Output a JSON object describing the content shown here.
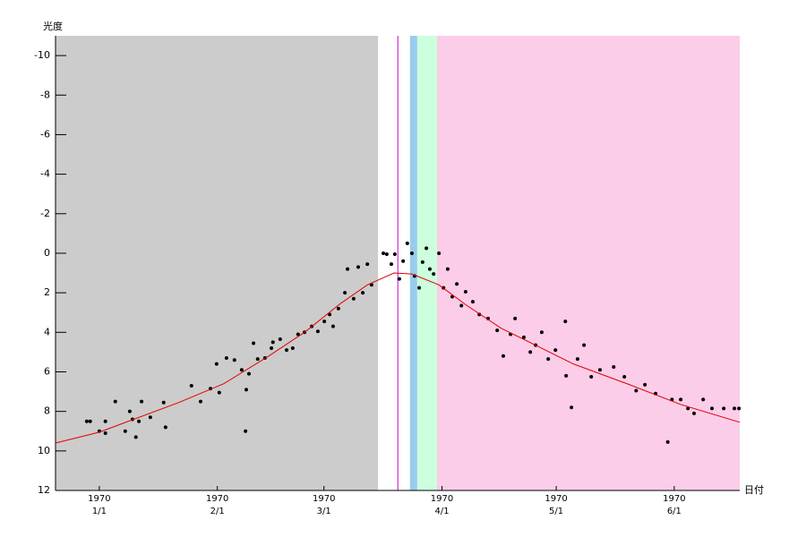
{
  "chart_data": {
    "type": "scatter",
    "y_label": "光度",
    "x_label": "日付",
    "xlim": [
      -11.5,
      168.2
    ],
    "ylim": [
      12,
      -11
    ],
    "yticks": [
      -10,
      -8,
      -6,
      -4,
      -2,
      0,
      2,
      4,
      6,
      8,
      10,
      12
    ],
    "xticks": [
      {
        "value": 0,
        "label": "1970\n1/1"
      },
      {
        "value": 31,
        "label": "1970\n2/1"
      },
      {
        "value": 59,
        "label": "1970\n3/1"
      },
      {
        "value": 90,
        "label": "1970\n4/1"
      },
      {
        "value": 120,
        "label": "1970\n5/1"
      },
      {
        "value": 151,
        "label": "1970\n6/1"
      }
    ],
    "bands": [
      {
        "from": -11.5,
        "to": 73.2,
        "color": "#cccccc"
      },
      {
        "from": 81.6,
        "to": 83.5,
        "color": "#99ccee"
      },
      {
        "from": 83.5,
        "to": 88.7,
        "color": "#ccffdd"
      },
      {
        "from": 88.7,
        "to": 168.2,
        "color": "#fbcde8"
      }
    ],
    "vline": {
      "x": 78.4,
      "color": "#cc00cc"
    },
    "series": [
      {
        "type": "scatter",
        "color": "#000000",
        "x": [
          -3.3,
          -2.4,
          0,
          1.6,
          1.6,
          4.2,
          6.8,
          8,
          8.7,
          9.6,
          10.4,
          11.1,
          13.4,
          16.9,
          17.4,
          24.2,
          26.6,
          29.2,
          30.8,
          31.5,
          33.4,
          35.5,
          37.4,
          38.4,
          38.6,
          39.3,
          40.5,
          41.6,
          43.5,
          45.2,
          45.6,
          47.5,
          49.2,
          50.8,
          52.2,
          53.9,
          55.8,
          57.4,
          59.1,
          60.5,
          61.4,
          62.8,
          64.5,
          65.2,
          66.8,
          68,
          69.2,
          70.4,
          71.5,
          74.6,
          75.5,
          76.7,
          77.6,
          78.8,
          79.8,
          80.9,
          82.1,
          82.8,
          84,
          84.9,
          85.9,
          86.8,
          87.8,
          89.2,
          90.4,
          91.5,
          92.7,
          93.9,
          95.1,
          96.2,
          98.1,
          99.8,
          102.1,
          104.5,
          106.1,
          108,
          109.2,
          111.5,
          113.2,
          114.6,
          116.2,
          117.9,
          119.8,
          122.4,
          122.6,
          124,
          125.6,
          127.3,
          129.2,
          131.5,
          135.1,
          137.9,
          141,
          143.3,
          146.1,
          149.3,
          150.4,
          152.7,
          154.6,
          156.2,
          158.6,
          160.9,
          164,
          166.8,
          168
        ],
        "values": [
          8.5,
          8.5,
          9,
          9.1,
          8.5,
          7.5,
          9,
          8,
          8.4,
          9.3,
          8.5,
          7.5,
          8.3,
          7.55,
          8.8,
          6.7,
          7.5,
          6.85,
          5.6,
          7.05,
          5.3,
          5.4,
          5.9,
          9,
          6.9,
          6.1,
          4.55,
          5.35,
          5.3,
          4.8,
          4.5,
          4.35,
          4.9,
          4.8,
          4.1,
          4,
          3.7,
          3.95,
          3.45,
          3.1,
          3.7,
          2.8,
          2,
          0.8,
          2.3,
          0.7,
          2,
          0.55,
          1.6,
          0,
          0.05,
          0.55,
          0.05,
          1.3,
          0.4,
          -0.5,
          0,
          1.15,
          1.75,
          0.45,
          -0.25,
          0.8,
          1.05,
          0,
          1.75,
          0.8,
          2.2,
          1.55,
          2.65,
          1.95,
          2.45,
          3.1,
          3.3,
          3.9,
          5.2,
          4.1,
          3.3,
          4.25,
          5,
          4.65,
          4,
          5.35,
          4.9,
          3.45,
          6.2,
          7.8,
          5.35,
          4.65,
          6.25,
          5.9,
          5.75,
          6.25,
          6.95,
          6.65,
          7.1,
          9.55,
          7.4,
          7.4,
          7.85,
          8.1,
          7.4,
          7.85,
          7.85,
          7.85,
          7.85
        ]
      },
      {
        "type": "line",
        "color": "#e00000",
        "x": [
          -11.5,
          0,
          20.9,
          32.7,
          44.5,
          53.9,
          63.3,
          70.4,
          77.4,
          82.1,
          89.2,
          96.2,
          105.6,
          115.1,
          124.5,
          138.6,
          152.7,
          168.2
        ],
        "values": [
          9.6,
          9.05,
          7.55,
          6.6,
          5.2,
          4,
          2.55,
          1.6,
          1,
          1.05,
          1.6,
          2.6,
          3.8,
          4.7,
          5.6,
          6.6,
          7.65,
          8.55
        ]
      }
    ]
  }
}
